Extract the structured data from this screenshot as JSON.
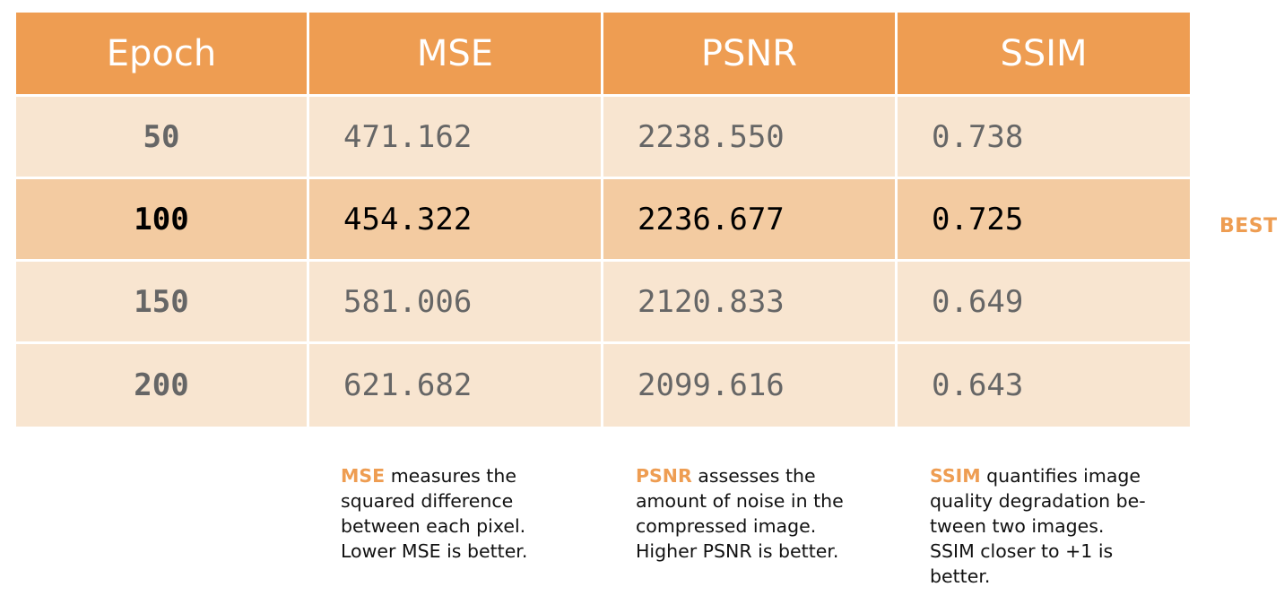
{
  "chart_data": {
    "type": "table",
    "columns": [
      "Epoch",
      "MSE",
      "PSNR",
      "SSIM"
    ],
    "rows": [
      [
        "50",
        "471.162",
        "2238.550",
        "0.738"
      ],
      [
        "100",
        "454.322",
        "2236.677",
        "0.725"
      ],
      [
        "150",
        "581.006",
        "2120.833",
        "0.649"
      ],
      [
        "200",
        "621.682",
        "2099.616",
        "0.643"
      ]
    ],
    "best_row_index": 1,
    "best_label": "BEST",
    "notes": [
      {
        "term": "MSE",
        "lines": [
          "measures the",
          "squared difference",
          "between each pixel.",
          "Lower MSE is better."
        ]
      },
      {
        "term": "PSNR",
        "lines": [
          "assesses the",
          "amount of noise in the",
          "compressed image.",
          "Higher PSNR is better."
        ]
      },
      {
        "term": "SSIM",
        "lines": [
          "quantifies image",
          "quality degradation be-",
          "tween two images.",
          "SSIM closer to +1 is",
          "better."
        ]
      }
    ],
    "colors": {
      "header": "#ee9d52",
      "row": "#f8e5d0",
      "best_row": "#f3cba1",
      "accent": "#ee9d52"
    }
  }
}
